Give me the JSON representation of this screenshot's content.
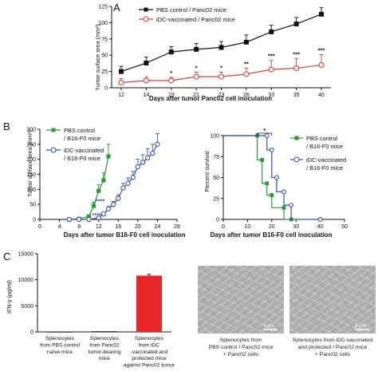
{
  "panels": {
    "A": "A",
    "B": "B",
    "C": "C"
  },
  "colors": {
    "control": "#111111",
    "vaccinated": "#d14040",
    "green": "#2a9a3a",
    "blue": "#3b4fa8",
    "red_bar": "#e8262a"
  },
  "chart_data": [
    {
      "id": "A",
      "type": "line",
      "xlabel": "Days after tumor Panc02 cell inoculation",
      "ylabel": "Tumor surface area (mm²)",
      "x": [
        12,
        14,
        19,
        21,
        23,
        26,
        33,
        35,
        40
      ],
      "xticks": [
        "12",
        "14",
        "19",
        "21",
        "23",
        "26",
        "33",
        "35",
        "40"
      ],
      "ylim": [
        0,
        125
      ],
      "yticks": [
        0,
        25,
        50,
        75,
        100,
        125
      ],
      "series": [
        {
          "name": "PBS control / Panc02 mice",
          "marker": "square",
          "color": "#111111",
          "values": [
            25,
            38,
            55,
            59,
            62,
            70,
            86,
            98,
            113
          ],
          "errors": [
            8,
            9,
            8,
            9,
            9,
            11,
            10,
            10,
            10
          ]
        },
        {
          "name": "iDC-vaccinated / Panc02 mice",
          "marker": "circle-open",
          "color": "#d14040",
          "values": [
            8,
            11,
            11,
            17,
            17,
            21,
            28,
            30,
            35
          ],
          "errors": [
            6,
            6,
            5,
            7,
            7,
            9,
            14,
            15,
            16
          ]
        }
      ],
      "annotations": [
        "",
        "",
        "*",
        "*",
        "*",
        "**",
        "***",
        "***",
        "***"
      ]
    },
    {
      "id": "B-left",
      "type": "line",
      "xlabel": "Days after tumor B16-F0 cell inoculation",
      "ylabel": "Tumor surface area (mm²)",
      "xlim": [
        0,
        28
      ],
      "xticks": [
        0,
        4,
        8,
        12,
        16,
        20,
        24,
        28
      ],
      "ylim": [
        0,
        300
      ],
      "yticks": [
        0,
        50,
        100,
        150,
        200,
        250,
        300
      ],
      "series": [
        {
          "name": "PBS control / B16-F0 mice",
          "marker": "square",
          "color": "#2a9a3a",
          "x": [
            6,
            8,
            10,
            11,
            12,
            13,
            14
          ],
          "values": [
            0,
            2,
            10,
            45,
            95,
            130,
            210
          ],
          "errors": [
            0,
            2,
            5,
            12,
            20,
            25,
            40
          ]
        },
        {
          "name": "iDC-vaccinated / B16-F0 mice",
          "marker": "circle-open",
          "color": "#3b4fa8",
          "x": [
            6,
            8,
            10,
            12,
            13,
            14,
            15,
            16,
            17,
            18,
            19,
            20,
            21,
            22,
            23,
            24
          ],
          "values": [
            0,
            0,
            0,
            5,
            18,
            35,
            50,
            70,
            105,
            120,
            140,
            175,
            190,
            205,
            220,
            250
          ],
          "errors": [
            0,
            0,
            0,
            3,
            6,
            8,
            10,
            12,
            15,
            18,
            20,
            25,
            25,
            30,
            30,
            35
          ]
        }
      ],
      "annotations": [
        "****",
        "****"
      ]
    },
    {
      "id": "B-right",
      "type": "line",
      "xlabel": "Days after tumor B16-F0 cell inoculation",
      "ylabel": "Percent survival",
      "xlim": [
        0,
        50
      ],
      "xticks": [
        0,
        10,
        20,
        30,
        40,
        50
      ],
      "ylim": [
        0,
        100
      ],
      "yticks": [
        0,
        25,
        50,
        75,
        100
      ],
      "series": [
        {
          "name": "PBS control / B16-F0 mice",
          "marker": "square",
          "color": "#2a9a3a",
          "steps": [
            [
              0,
              100
            ],
            [
              14,
              100
            ],
            [
              14,
              71
            ],
            [
              16,
              71
            ],
            [
              16,
              43
            ],
            [
              18,
              43
            ],
            [
              18,
              29
            ],
            [
              20,
              29
            ],
            [
              20,
              14
            ],
            [
              25,
              14
            ],
            [
              25,
              0
            ],
            [
              28,
              0
            ]
          ]
        },
        {
          "name": "iDC-vaccinated / B16-F0 mice",
          "marker": "circle-open",
          "color": "#3b4fa8",
          "steps": [
            [
              0,
              100
            ],
            [
              18,
              100
            ],
            [
              18,
              83
            ],
            [
              20,
              83
            ],
            [
              20,
              50
            ],
            [
              22,
              50
            ],
            [
              22,
              33
            ],
            [
              25,
              33
            ],
            [
              25,
              17
            ],
            [
              28,
              17
            ],
            [
              28,
              0
            ],
            [
              40,
              0
            ]
          ]
        }
      ],
      "annotations": [
        "*"
      ]
    },
    {
      "id": "C",
      "type": "bar",
      "ylabel": "IFN-γ (pg/ml)",
      "ylim": [
        0,
        15000
      ],
      "yticks": [
        "0",
        "5000",
        "10000",
        "15000"
      ],
      "categories": [
        "Splenocytes from PBS control naïve mice",
        "Splenocytes from Panc02 tumor-bearing mice",
        "Splenocytes from iDC -vaccinated and protected mice against Panc02 tumor"
      ],
      "values": [
        20,
        120,
        10800
      ],
      "errors": [
        0,
        0,
        250
      ],
      "colors": [
        "#111111",
        "#111111",
        "#e8262a"
      ]
    }
  ],
  "legend_A": [
    "PBS control / Panc02 mice",
    "iDC-vaccinated / Panc02 mice"
  ],
  "legend_B_left": [
    "PBS control",
    "/ B16-F0 mice",
    "iDC-vaccinated",
    "/ B16-F0 mice"
  ],
  "legend_B_right": [
    "PBS control",
    "/ B16-F0 mice",
    "iDC-vaccinated",
    "/ B16-F0 mice"
  ],
  "cat_labels_C": [
    [
      "Splenocytes",
      "from PBS control",
      "naïve mice"
    ],
    [
      "Splenocytes",
      "from Panc02",
      "tumor-bearing",
      "mice"
    ],
    [
      "Splenocytes",
      "from iDC",
      "-vaccinated and",
      "protected mice",
      "against Panc02 tumor"
    ]
  ],
  "micrographs": [
    {
      "caption": [
        "Splenocytes from",
        "PBS control / Panc02 mice",
        "+ Panc02 cells"
      ],
      "scale": "5 μm"
    },
    {
      "caption": [
        "Splenocytes from iDC-vaccinated",
        "and protected / Panc02 mice",
        "+ Panc02 cells"
      ],
      "scale": "5 μm"
    }
  ]
}
